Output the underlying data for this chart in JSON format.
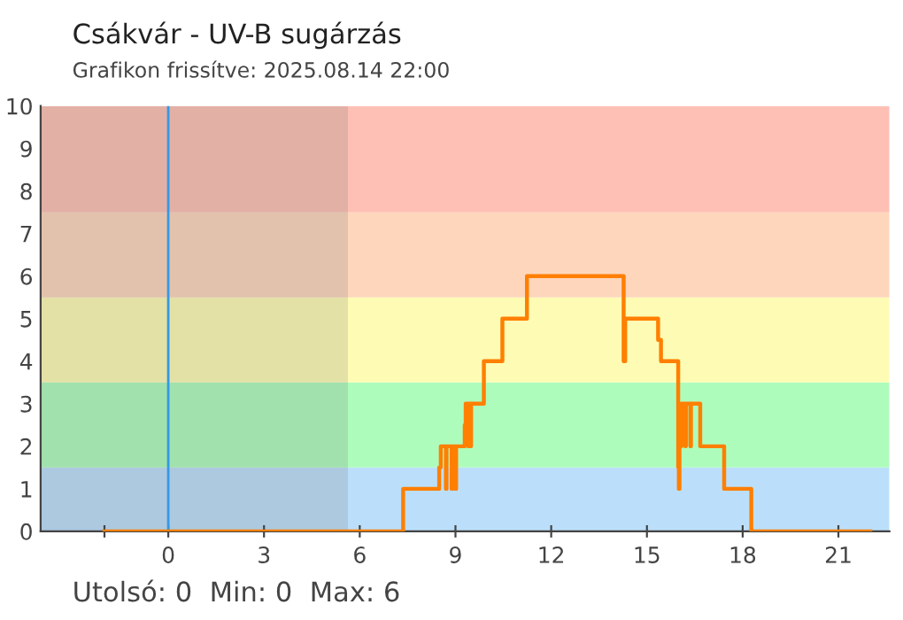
{
  "chart_data": {
    "type": "step",
    "title": "Csákvár - UV-B sugárzás",
    "subtitle": "Grafikon frissítve: 2025.08.14 22:00",
    "x": [
      -2,
      7.36,
      8.49,
      8.54,
      8.7,
      8.72,
      8.88,
      8.9,
      9.0,
      9.02,
      9.29,
      9.32,
      9.4,
      9.42,
      9.47,
      9.49,
      9.89,
      10.47,
      11.24,
      14.27,
      14.32,
      15.35,
      15.44,
      15.98,
      16.0,
      16.02,
      16.08,
      16.2,
      16.22,
      16.36,
      16.38,
      16.67,
      17.42,
      18.27,
      22.0
    ],
    "series": [
      {
        "color": "#ff7f00",
        "values": [
          0,
          1,
          1.5,
          2,
          1,
          2,
          1,
          2,
          1,
          2,
          2.5,
          3,
          2,
          3,
          2,
          3,
          4,
          5,
          6,
          4,
          5,
          4.5,
          4,
          1.5,
          1,
          2,
          3,
          2,
          3,
          2,
          3,
          2,
          1,
          0,
          0
        ]
      }
    ],
    "xlim": [
      -4,
      22.6
    ],
    "ylim": [
      0,
      10
    ],
    "xticks": [
      {
        "value": -2,
        "label": null
      },
      0,
      3,
      6,
      9,
      12,
      15,
      18,
      21
    ],
    "yticks": [
      0,
      1,
      2,
      3,
      4,
      5,
      6,
      7,
      8,
      9,
      10
    ],
    "bands": [
      {
        "axis": "y",
        "from": 0,
        "to": 1.5,
        "color": "#bbdffb"
      },
      {
        "axis": "y",
        "from": 1.5,
        "to": 3.5,
        "color": "#aefcbc"
      },
      {
        "axis": "y",
        "from": 3.5,
        "to": 5.5,
        "color": "#fefcb4"
      },
      {
        "axis": "y",
        "from": 5.5,
        "to": 7.5,
        "color": "#fed6bc"
      },
      {
        "axis": "y",
        "from": 7.5,
        "to": 10,
        "color": "#fec0b4"
      },
      {
        "axis": "x",
        "from": -4,
        "to": 5.63,
        "color": "#6b6b6b"
      }
    ],
    "ref_lines": [
      {
        "axis": "x",
        "value": 0,
        "color": "#3399e6"
      }
    ],
    "annotations": [
      "Utolsó: 0  Min: 0  Max: 6"
    ],
    "grid": false,
    "legend": false
  }
}
